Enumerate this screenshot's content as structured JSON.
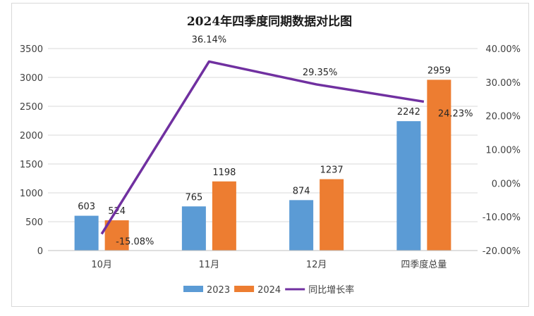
{
  "chart_data": {
    "type": "bar",
    "title": "2024年四季度同期数据对比图",
    "categories": [
      "10月",
      "11月",
      "12月",
      "四季度总量"
    ],
    "series": [
      {
        "name": "2023",
        "type": "bar",
        "values": [
          603,
          765,
          874,
          2242
        ],
        "color": "#5b9bd5"
      },
      {
        "name": "2024",
        "type": "bar",
        "values": [
          524,
          1198,
          1237,
          2959
        ],
        "color": "#ed7d31"
      },
      {
        "name": "同比增长率",
        "type": "line",
        "axis": "right",
        "values": [
          -15.08,
          36.14,
          29.35,
          24.23
        ],
        "labels": [
          "-15.08%",
          "36.14%",
          "29.35%",
          "24.23%"
        ],
        "color": "#7030a0"
      }
    ],
    "y_left": {
      "lim": [
        0,
        3500
      ],
      "ticks": [
        "0",
        "500",
        "1000",
        "1500",
        "2000",
        "2500",
        "3000",
        "3500"
      ]
    },
    "y_right": {
      "lim": [
        -20,
        40
      ],
      "ticks": [
        "-20.00%",
        "-10.00%",
        "0.00%",
        "10.00%",
        "20.00%",
        "30.00%",
        "40.00%"
      ]
    },
    "legend_position": "bottom",
    "grid": true
  }
}
